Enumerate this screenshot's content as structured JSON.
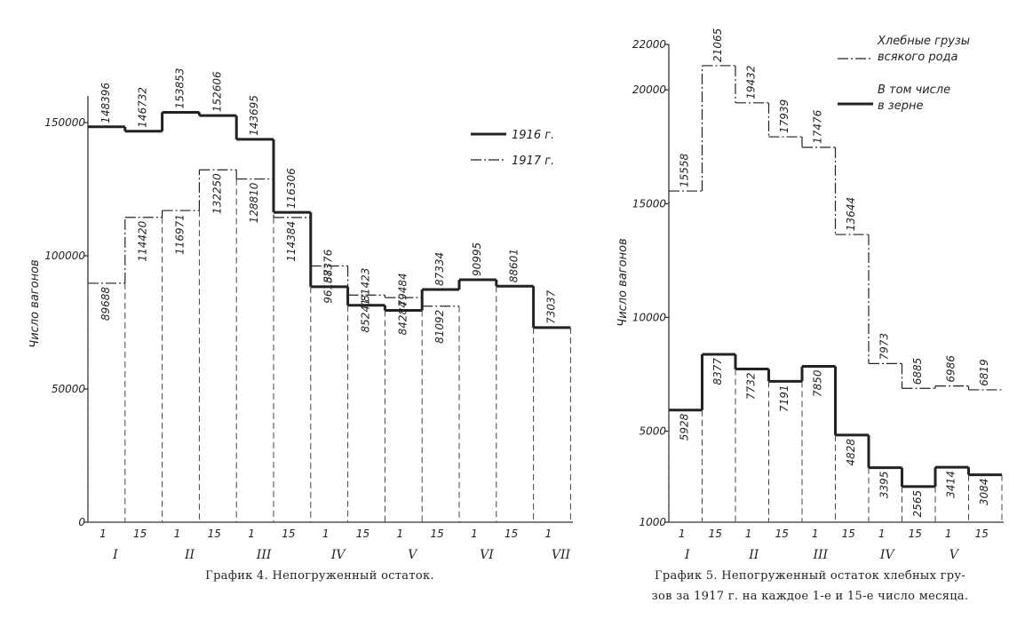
{
  "chart_data": [
    {
      "type": "step-line",
      "caption": "График 4. Непогруженный остаток.",
      "ylabel": "Число вагонов",
      "ylim": [
        0,
        160000
      ],
      "yticks": [
        "0",
        "50000",
        "100000",
        "150000"
      ],
      "x_day_labels": [
        "1",
        "15",
        "1",
        "15",
        "1",
        "15",
        "1",
        "15",
        "1",
        "15",
        "1",
        "15",
        "1"
      ],
      "month_labels": [
        "I",
        "II",
        "III",
        "IV",
        "V",
        "VI",
        "VII"
      ],
      "legend": [
        "1916 г.",
        "1917 г."
      ],
      "series": [
        {
          "name": "1916 г.",
          "values": [
            148396,
            146732,
            153853,
            152606,
            143695,
            116306,
            88376,
            81423,
            79484,
            87334,
            90995,
            88601,
            73037
          ],
          "labels": [
            "148396",
            "146732",
            "153853",
            "152606",
            "143695",
            "116306",
            "88376",
            "81423",
            "79484",
            "87334",
            "90995",
            "88601",
            "73037"
          ]
        },
        {
          "name": "1917 г.",
          "values": [
            89688,
            114420,
            116971,
            132250,
            128810,
            114384,
            96157,
            85241,
            84284,
            81092
          ],
          "labels": [
            "89688",
            "114420",
            "116971",
            "132250",
            "128810",
            "114384",
            "96157",
            "85241",
            "84284",
            "81092"
          ]
        }
      ]
    },
    {
      "type": "step-line",
      "caption_line1": "График 5. Непогруженный остаток хлебных гру-",
      "caption_line2": "зов за 1917 г. на каждое 1-е и 15-е число месяца.",
      "ylabel": "Число вагонов",
      "ylim": [
        1000,
        22000
      ],
      "yticks": [
        "1000",
        "5000",
        "10000",
        "15000",
        "20000",
        "22000"
      ],
      "x_day_labels": [
        "1",
        "15",
        "1",
        "15",
        "1",
        "15",
        "1",
        "15",
        "1",
        "15"
      ],
      "month_labels": [
        "I",
        "II",
        "III",
        "IV",
        "V"
      ],
      "legend": [
        "Хлебные грузы",
        "всякого рода",
        "В том числе",
        "в зерне"
      ],
      "series": [
        {
          "name": "Хлебные грузы всякого рода",
          "values": [
            15558,
            21065,
            19432,
            17939,
            17476,
            13644,
            7973,
            6885,
            6986,
            6819
          ],
          "labels": [
            "15558",
            "21065",
            "19432",
            "17939",
            "17476",
            "13644",
            "7973",
            "6885",
            "6986",
            "6819"
          ]
        },
        {
          "name": "В том числе в зерне",
          "values": [
            5928,
            8377,
            7732,
            7191,
            7850,
            4828,
            3395,
            2565,
            3414,
            3084
          ],
          "labels": [
            "5928",
            "8377",
            "7732",
            "7191",
            "7850",
            "4828",
            "3395",
            "2565",
            "3414",
            "3084"
          ]
        }
      ]
    }
  ]
}
